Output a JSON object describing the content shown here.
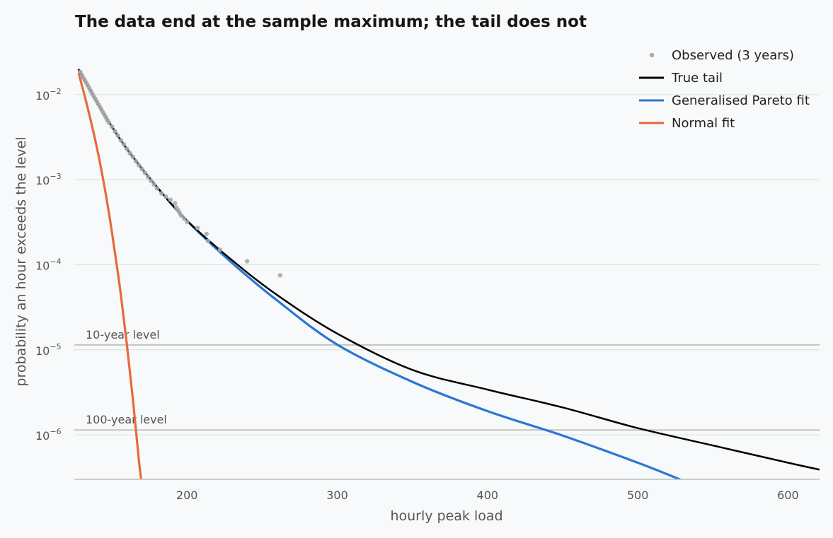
{
  "chart_data": {
    "type": "line",
    "title": "The data end at the sample maximum; the tail does not",
    "xlabel": "hourly peak load",
    "ylabel": "probability an hour exceeds the level",
    "xlim": [
      125,
      621
    ],
    "ylim": [
      3e-07,
      0.028
    ],
    "yscale": "log",
    "grid": "horizontal",
    "legend_position": "top-right",
    "colors": {
      "observed": "#aaaaaa",
      "true_tail": "#000000",
      "gpd": "#2b77d2",
      "normal": "#e8693c",
      "reference": "#c5c5b8",
      "grid": "#dfe5dc"
    },
    "x_ticks": [
      {
        "value": 200,
        "label": "200"
      },
      {
        "value": 300,
        "label": "300"
      },
      {
        "value": 400,
        "label": "400"
      },
      {
        "value": 500,
        "label": "500"
      },
      {
        "value": 600,
        "label": "600"
      }
    ],
    "y_ticks": [
      {
        "value": 0.01,
        "mantissa": "10",
        "exponent": "−2"
      },
      {
        "value": 0.001,
        "mantissa": "10",
        "exponent": "−3"
      },
      {
        "value": 0.0001,
        "mantissa": "10",
        "exponent": "−4"
      },
      {
        "value": 1e-05,
        "mantissa": "10",
        "exponent": "−5"
      },
      {
        "value": 1e-06,
        "mantissa": "10",
        "exponent": "−6"
      }
    ],
    "reference_lines": [
      {
        "label": "10-year level",
        "y": 1.14e-05
      },
      {
        "label": "100-year level",
        "y": 1.14e-06
      }
    ],
    "series": [
      {
        "name": "Observed (3 years)",
        "kind": "scatter",
        "x": [
          129,
          130,
          131,
          132,
          133,
          134,
          135,
          136,
          137,
          138,
          139,
          140,
          141,
          142,
          143,
          144,
          145,
          146,
          147,
          148,
          150,
          152,
          154,
          156,
          158,
          160,
          162,
          164,
          166,
          168,
          170,
          172,
          174,
          176,
          178,
          180,
          183,
          186,
          189,
          192,
          193,
          194,
          195,
          196,
          198,
          200,
          207,
          213,
          214,
          222,
          240,
          262
        ],
        "y": [
          0.0185,
          0.017,
          0.0158,
          0.0147,
          0.0138,
          0.0128,
          0.0119,
          0.011,
          0.0102,
          0.0095,
          0.0089,
          0.0083,
          0.0077,
          0.0072,
          0.0067,
          0.0062,
          0.0058,
          0.0054,
          0.005,
          0.0047,
          0.0042,
          0.0037,
          0.0033,
          0.0029,
          0.0026,
          0.0023,
          0.00205,
          0.00185,
          0.00165,
          0.00148,
          0.00133,
          0.0012,
          0.00108,
          0.00097,
          0.00088,
          0.00079,
          0.00069,
          0.00063,
          0.00058,
          0.00053,
          0.00047,
          0.00044,
          0.00041,
          0.00038,
          0.00035,
          0.00032,
          0.00027,
          0.00023,
          0.00019,
          0.00015,
          0.00011,
          7.5e-05
        ]
      },
      {
        "name": "True tail",
        "kind": "line",
        "x": [
          128,
          135,
          145,
          160,
          180,
          200,
          230,
          260,
          300,
          350,
          400,
          450,
          500,
          550,
          600,
          621
        ],
        "y": [
          0.0195,
          0.0117,
          0.0058,
          0.0023,
          0.00082,
          0.00033,
          0.000113,
          4.4e-05,
          1.55e-05,
          5.8e-06,
          3.4e-06,
          2.1e-06,
          1.2e-06,
          7.5e-07,
          4.7e-07,
          3.9e-07
        ]
      },
      {
        "name": "Generalised Pareto fit",
        "kind": "line",
        "x": [
          128,
          135,
          145,
          160,
          180,
          200,
          230,
          260,
          300,
          350,
          400,
          450,
          500,
          528
        ],
        "y": [
          0.0195,
          0.0117,
          0.0058,
          0.0023,
          0.00082,
          0.00033,
          0.000105,
          3.8e-05,
          1.15e-05,
          4.2e-06,
          1.9e-06,
          9.8e-07,
          4.7e-07,
          3e-07
        ]
      },
      {
        "name": "Normal fit",
        "kind": "line",
        "x": [
          128,
          132,
          136,
          140,
          144,
          148,
          152,
          156,
          160,
          164,
          168,
          169.5
        ],
        "y": [
          0.0175,
          0.0095,
          0.0049,
          0.0024,
          0.00105,
          0.00041,
          0.00014,
          4.4e-05,
          1.15e-05,
          2.6e-06,
          5e-07,
          3e-07
        ]
      }
    ]
  }
}
